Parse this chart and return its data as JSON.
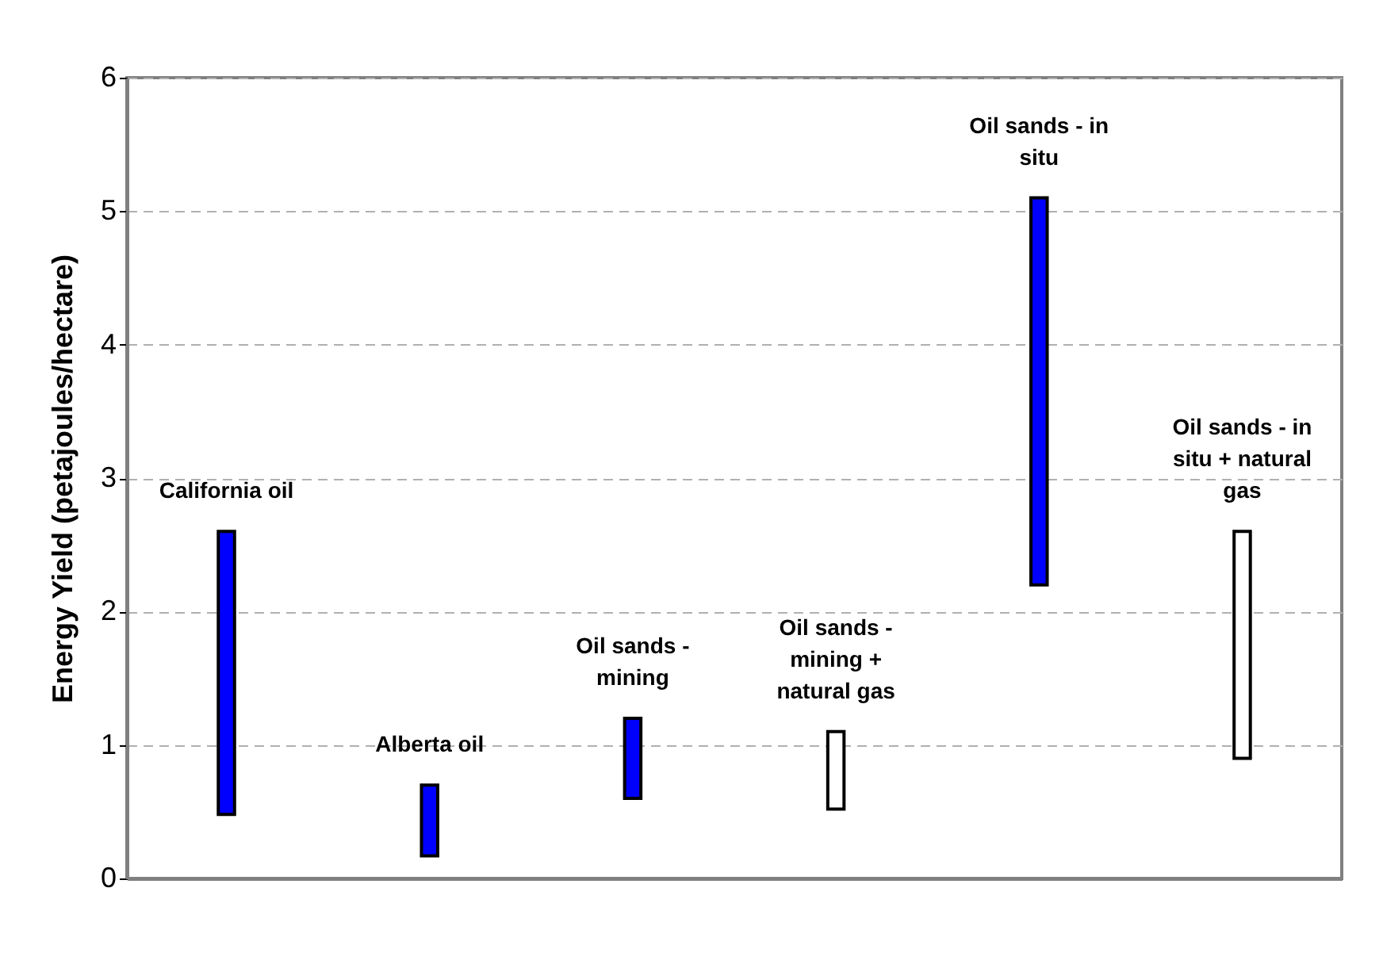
{
  "chart_data": {
    "type": "bar",
    "ylabel": "Energy Yield (petajoules/hectare)",
    "categories": [
      "California oil",
      "Alberta oil",
      "Oil sands - mining",
      "Oil sands - mining + natural gas",
      "Oil sands - in situ",
      "Oil sands - in situ + natural gas"
    ],
    "base": [
      0.48,
      0.17,
      0.6,
      0.52,
      2.2,
      0.9
    ],
    "values": [
      2.12,
      0.53,
      0.6,
      0.58,
      2.9,
      1.7
    ],
    "colors": [
      "#0000ff",
      "#0000ff",
      "#0000ff",
      "#ffffff",
      "#0000ff",
      "#ffffff"
    ],
    "ylim": [
      0,
      6
    ],
    "yticks": [
      0,
      1,
      2,
      3,
      4,
      5,
      6
    ],
    "grid": "y",
    "tick_labels": "y"
  }
}
